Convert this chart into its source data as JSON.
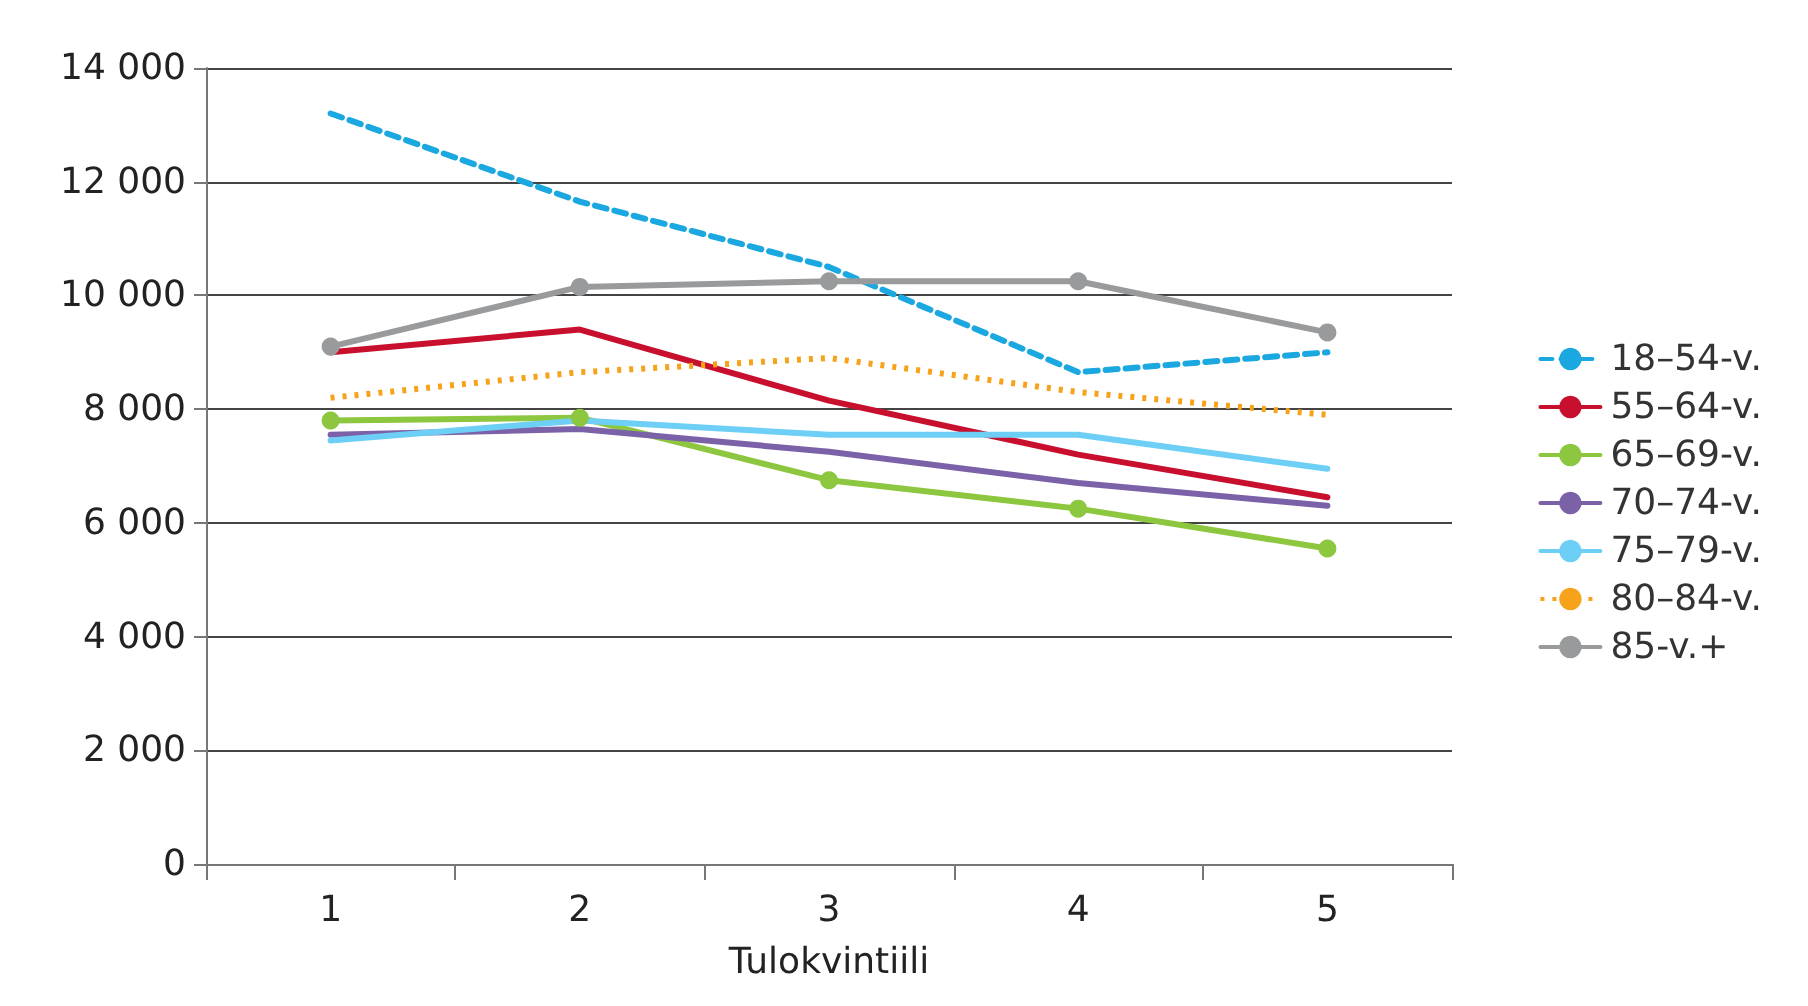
{
  "chart_data": {
    "type": "line",
    "xlabel": "Tulokvintiili",
    "categories": [
      "1",
      "2",
      "3",
      "4",
      "5"
    ],
    "ylim": [
      0,
      14000
    ],
    "yticks": [
      {
        "value": 0,
        "label": "0"
      },
      {
        "value": 2000,
        "label": "2 000"
      },
      {
        "value": 4000,
        "label": "4 000"
      },
      {
        "value": 6000,
        "label": "6 000"
      },
      {
        "value": 8000,
        "label": "8 000"
      },
      {
        "value": 10000,
        "label": "10 000"
      },
      {
        "value": 12000,
        "label": "12 000"
      },
      {
        "value": 14000,
        "label": "14 000"
      }
    ],
    "grid": "y",
    "legend": "right",
    "series": [
      {
        "name": "18–54-v.",
        "color": "#1ba8e0",
        "line_style": "dashed",
        "marker": "none",
        "values": [
          13200,
          11650,
          10500,
          8650,
          9000
        ]
      },
      {
        "name": "55–64-v.",
        "color": "#c8102e",
        "line_style": "solid",
        "marker": "none",
        "values": [
          9000,
          9400,
          8150,
          7200,
          6450
        ]
      },
      {
        "name": "65–69-v.",
        "color": "#8dc63f",
        "line_style": "solid",
        "marker": "circle",
        "values": [
          7800,
          7850,
          6750,
          6250,
          5550
        ]
      },
      {
        "name": "70–74-v.",
        "color": "#7b62a8",
        "line_style": "solid",
        "marker": "none",
        "values": [
          7550,
          7650,
          7250,
          6700,
          6300
        ]
      },
      {
        "name": "75–79-v.",
        "color": "#6dcff6",
        "line_style": "solid",
        "marker": "none",
        "values": [
          7450,
          7800,
          7550,
          7550,
          6950
        ]
      },
      {
        "name": "80–84-v.",
        "color": "#f7a21b",
        "line_style": "dotted",
        "marker": "none",
        "values": [
          8200,
          8650,
          8900,
          8300,
          7900
        ]
      },
      {
        "name": "85-v.+",
        "color": "#999a9c",
        "line_style": "solid",
        "marker": "circle",
        "values": [
          9100,
          10150,
          10250,
          10250,
          9350
        ]
      }
    ]
  }
}
